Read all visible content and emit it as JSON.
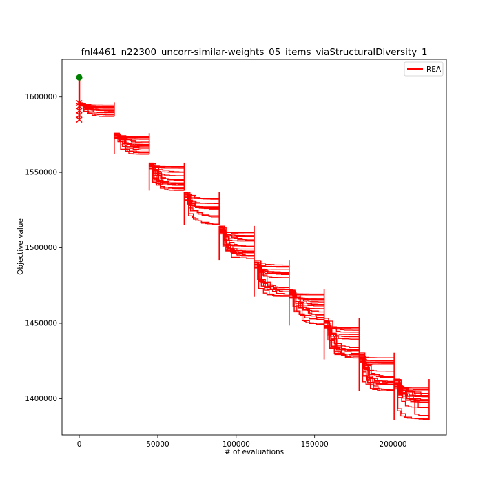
{
  "chart_data": {
    "type": "line",
    "title": "fnl4461_n22300_uncorr-similar-weights_05_items_viaStructuralDiversity_1",
    "xlabel": "# of evaluations",
    "ylabel": "Objective value",
    "xlim": [
      -11000,
      234000
    ],
    "ylim": [
      1376000,
      1625000
    ],
    "xticks": [
      0,
      50000,
      100000,
      150000,
      200000
    ],
    "xtick_labels": [
      "0",
      "50000",
      "100000",
      "150000",
      "200000"
    ],
    "yticks": [
      1400000,
      1450000,
      1500000,
      1550000,
      1600000
    ],
    "ytick_labels": [
      "1400000",
      "1450000",
      "1500000",
      "1550000",
      "1600000"
    ],
    "grid": false,
    "legend": {
      "position": "top-right",
      "entries": [
        {
          "label": "REA",
          "color": "#ff0000"
        }
      ]
    },
    "start_point": {
      "x": 0,
      "y": 1613000,
      "color": "#008000"
    },
    "start_markers_x": 0,
    "start_markers_y": [
      1585000,
      1588000,
      1591000,
      1594000,
      1596000
    ],
    "phase_length": 22300,
    "phases": [
      {
        "x_start": 0,
        "x_end": 22300,
        "y_min": 1587000,
        "y_max": 1596500
      },
      {
        "x_start": 22300,
        "x_end": 44600,
        "y_min": 1562000,
        "y_max": 1576000
      },
      {
        "x_start": 44600,
        "x_end": 66900,
        "y_min": 1538000,
        "y_max": 1556500
      },
      {
        "x_start": 66900,
        "x_end": 89200,
        "y_min": 1515000,
        "y_max": 1537000
      },
      {
        "x_start": 89200,
        "x_end": 111500,
        "y_min": 1492000,
        "y_max": 1514500
      },
      {
        "x_start": 111500,
        "x_end": 133800,
        "y_min": 1467500,
        "y_max": 1492000
      },
      {
        "x_start": 133800,
        "x_end": 156100,
        "y_min": 1448500,
        "y_max": 1472500
      },
      {
        "x_start": 156100,
        "x_end": 178400,
        "y_min": 1426000,
        "y_max": 1453500
      },
      {
        "x_start": 178400,
        "x_end": 200700,
        "y_min": 1405000,
        "y_max": 1430500
      },
      {
        "x_start": 200700,
        "x_end": 223000,
        "y_min": 1386000,
        "y_max": 1413000
      }
    ],
    "series_color": "#ff0000",
    "runs_per_phase": 18
  }
}
